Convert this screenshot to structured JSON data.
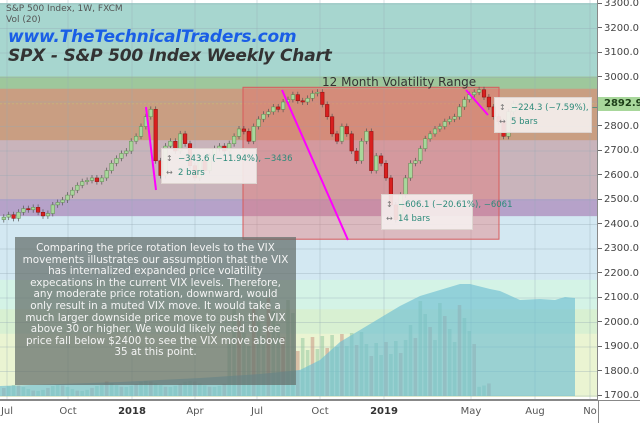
{
  "header": {
    "symbol_line": "S&P 500 Index, 1W, FXCM",
    "volume_line": "Vol (20)",
    "website": "www.TheTechnicalTraders.com",
    "title": "SPX - S&P 500 Index Weekly Chart"
  },
  "annotations": {
    "range_label": "12 Month Volatility Range",
    "measure_1": {
      "line1": "−343.6 (−11.94%), −3436",
      "line2": "2 bars"
    },
    "measure_2": {
      "line1": "−606.1 (−20.61%), −6061",
      "line2": "14 bars"
    },
    "measure_3": {
      "line1": "−224.3 (−7.59%), −2243",
      "line2": "5 bars"
    },
    "note_text": "Comparing the price rotation levels to the VIX movements illustrates our assumption that the VIX has internalized expanded price volatility expecations in the current VIX levels.  Therefore, any moderate price rotation, downward, would only result in a muted VIX move.  It would take a much larger downside price move to push the VIX above 30 or higher.  We would likely need to see price fall below $2400 to see the VIX move above 35 at this point."
  },
  "yaxis": {
    "ticks": [
      "3300.0",
      "3200.0",
      "3100.0",
      "3000.0",
      "2800.0",
      "2700.0",
      "2600.0",
      "2500.0",
      "2400.0",
      "2300.0",
      "2200.0",
      "2100.0",
      "2000.0",
      "1900.0",
      "1800.0",
      "1700.0"
    ],
    "current_price": "2892.9"
  },
  "xaxis": {
    "ticks": [
      {
        "label": "Jul",
        "bold": false
      },
      {
        "label": "Oct",
        "bold": false
      },
      {
        "label": "2018",
        "bold": true
      },
      {
        "label": "Apr",
        "bold": false
      },
      {
        "label": "Jul",
        "bold": false
      },
      {
        "label": "Oct",
        "bold": false
      },
      {
        "label": "2019",
        "bold": true
      },
      {
        "label": "May",
        "bold": false
      },
      {
        "label": "Aug",
        "bold": false
      },
      {
        "label": "No",
        "bold": false
      }
    ]
  },
  "colors": {
    "up_candle": "#a8d79b",
    "down_candle": "#d81f1f",
    "trend_line": "#ff00ff",
    "range_box": "rgba(230,90,90,0.35)",
    "price_tag": "#a8d79b"
  },
  "chart_data": {
    "type": "candlestick",
    "title": "SPX - S&P 500 Index Weekly Chart",
    "subtitle": "S&P 500 Index, 1W, FXCM",
    "xlabel": "",
    "ylabel": "",
    "ylim": [
      1700,
      3300
    ],
    "x_ticks": [
      "Jul",
      "Oct",
      "2018",
      "Apr",
      "Jul",
      "Oct",
      "2019",
      "May",
      "Aug",
      "No"
    ],
    "y_ticks": [
      3300,
      3200,
      3100,
      3000,
      2900,
      2800,
      2700,
      2600,
      2500,
      2400,
      2300,
      2200,
      2100,
      2000,
      1900,
      1800,
      1700
    ],
    "last_price": 2892.9,
    "horizontal_bands": [
      {
        "from": 3000,
        "to": 3300,
        "color": "#a7d6cf"
      },
      {
        "from": 2950,
        "to": 3000,
        "color": "#9ec79c"
      },
      {
        "from": 2740,
        "to": 2950,
        "color": "#c99e82"
      },
      {
        "from": 2500,
        "to": 2740,
        "color": "#c9b4bb"
      },
      {
        "from": 2430,
        "to": 2500,
        "color": "#b6a2c9"
      },
      {
        "from": 2170,
        "to": 2430,
        "color": "#d3e8f2"
      },
      {
        "from": 2050,
        "to": 2170,
        "color": "#d4f3e6"
      },
      {
        "from": 1950,
        "to": 2050,
        "color": "#d8f0d2"
      },
      {
        "from": 1700,
        "to": 1950,
        "color": "#eaf4d2"
      }
    ],
    "measurements": [
      {
        "change": -343.6,
        "percent": -11.94,
        "ticks": -3436,
        "bars": 2,
        "from_price": 2873,
        "to_price": 2532
      },
      {
        "change": -606.1,
        "percent": -20.61,
        "ticks": -6061,
        "bars": 14,
        "from_price": 2940,
        "to_price": 2334
      },
      {
        "change": -224.3,
        "percent": -7.59,
        "ticks": -2243,
        "bars": 5,
        "from_price": 2954,
        "to_price": 2730
      }
    ],
    "range_box": {
      "label": "12 Month Volatility Range",
      "x_start": "Jun 2018",
      "x_end": "May 2019",
      "top": 2960,
      "bottom": 2340
    },
    "approx_weekly_closes": [
      {
        "period": "Jul 2017",
        "close": 2440
      },
      {
        "period": "Oct 2017",
        "close": 2560
      },
      {
        "period": "Jan 2018",
        "close": 2840
      },
      {
        "period": "Feb 2018",
        "close": 2620
      },
      {
        "period": "Apr 2018",
        "close": 2660
      },
      {
        "period": "Jul 2018",
        "close": 2800
      },
      {
        "period": "Sep 2018",
        "close": 2920
      },
      {
        "period": "Oct 2018",
        "close": 2700
      },
      {
        "period": "Dec 2018",
        "close": 2420
      },
      {
        "period": "Jan 2019",
        "close": 2650
      },
      {
        "period": "Apr 2019",
        "close": 2940
      },
      {
        "period": "May 2019",
        "close": 2892.9
      }
    ],
    "volume_indicator": "Vol (20)"
  }
}
